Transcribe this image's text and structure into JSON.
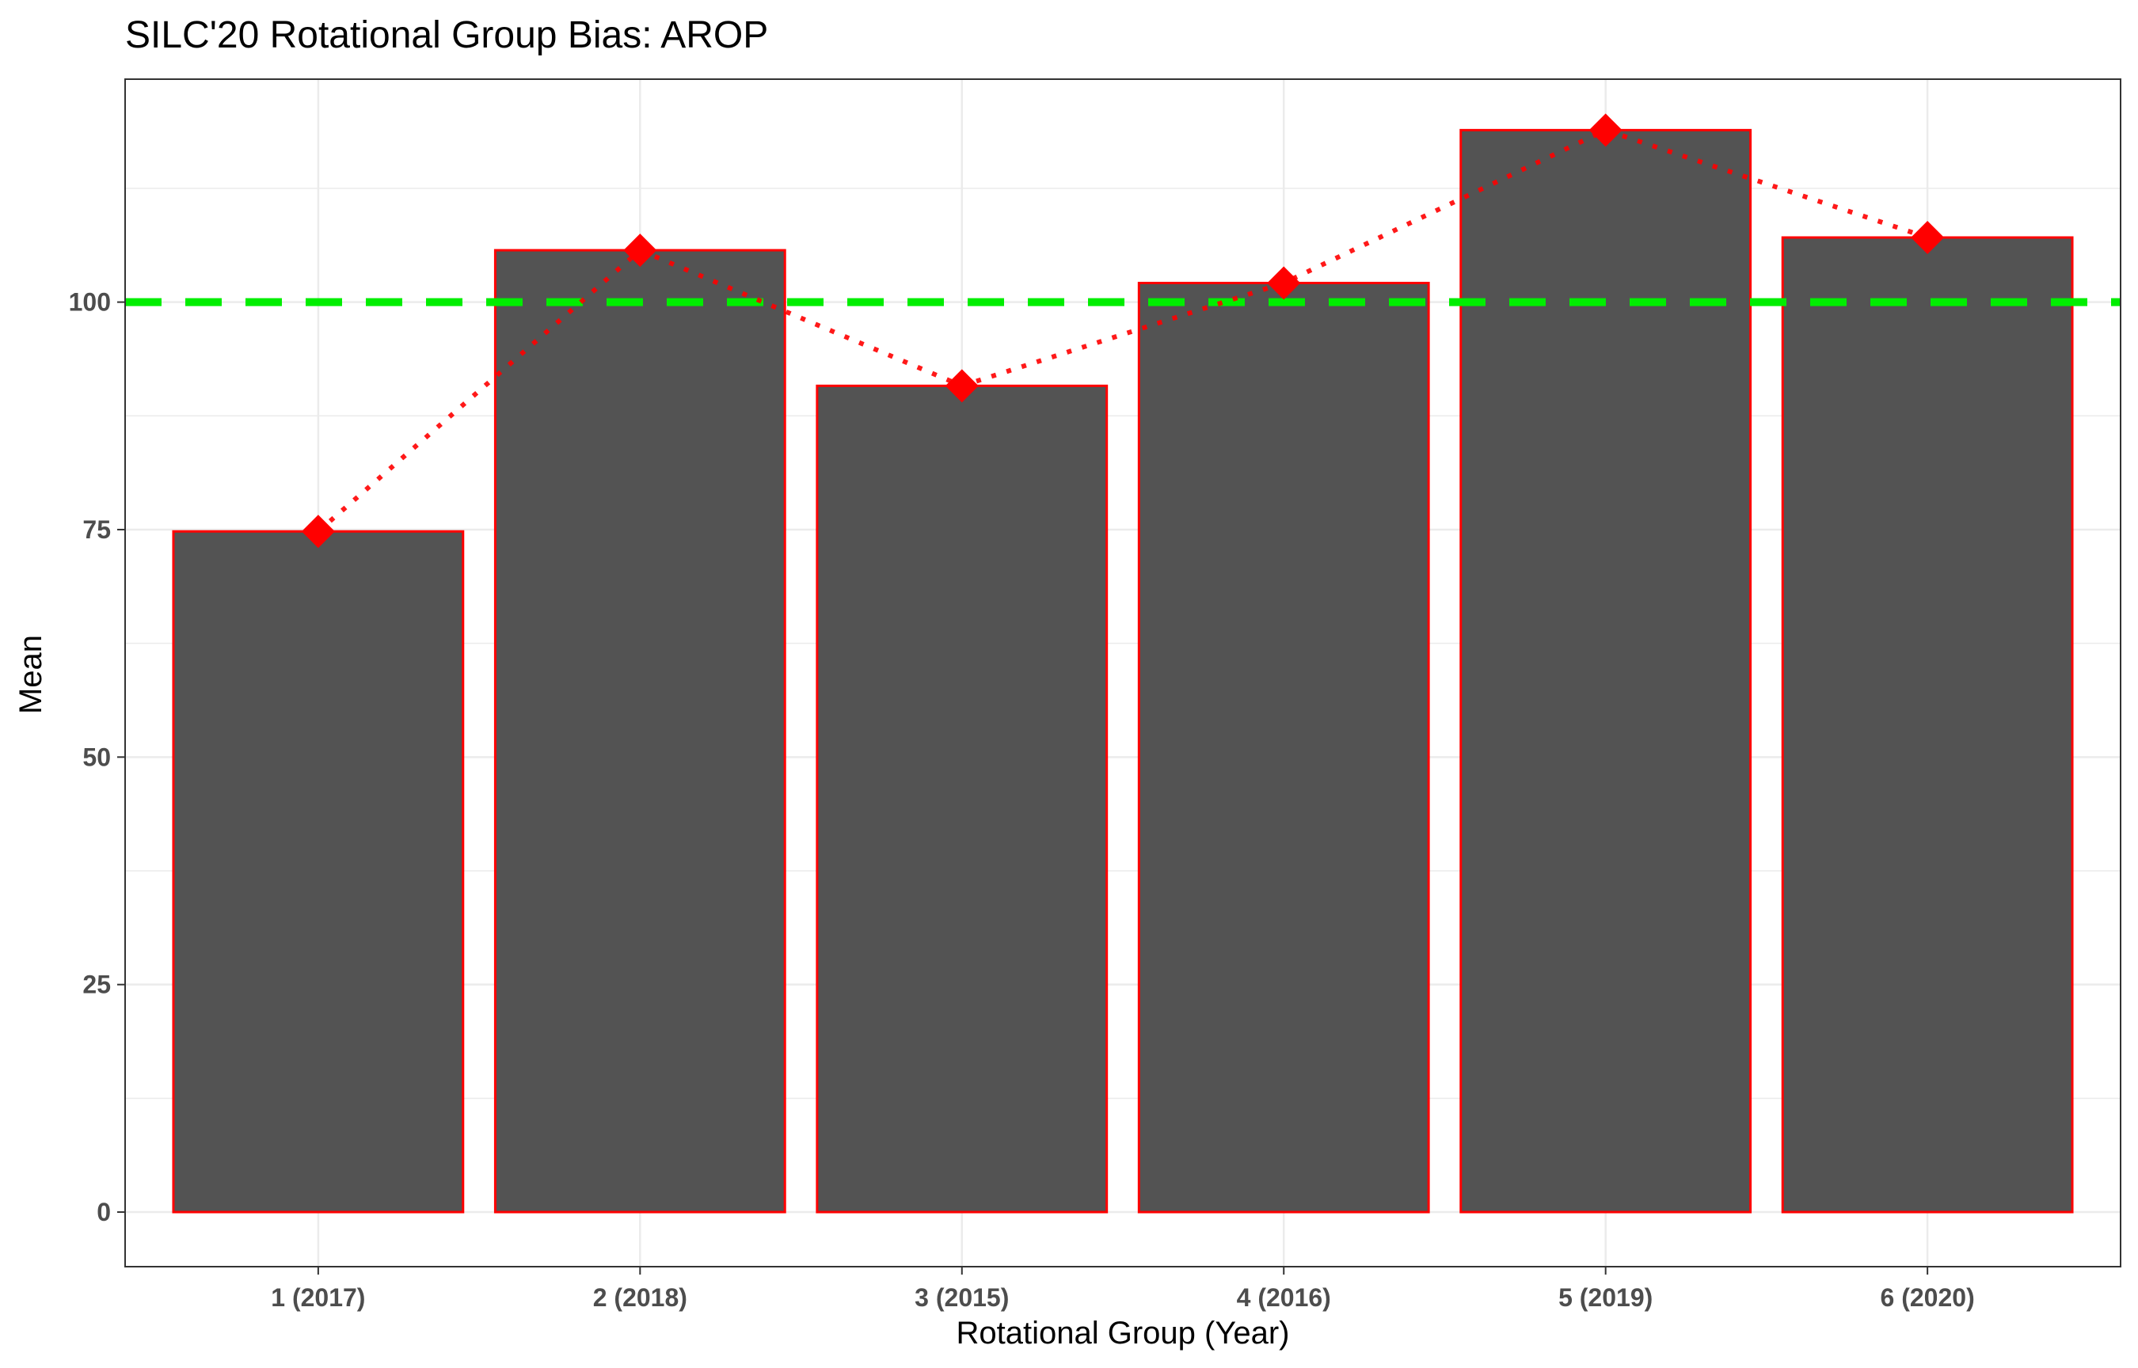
{
  "chart_data": {
    "type": "bar",
    "title": "SILC'20 Rotational Group Bias: AROP",
    "xlabel": "Rotational Group (Year)",
    "ylabel": "Mean",
    "categories": [
      "1 (2017)",
      "2 (2018)",
      "3 (2015)",
      "4 (2016)",
      "5 (2019)",
      "6 (2020)"
    ],
    "values": [
      74.8,
      105.7,
      90.8,
      102.1,
      118.9,
      107.1
    ],
    "line_overlay": {
      "values": [
        74.8,
        105.7,
        90.8,
        102.1,
        118.9,
        107.1
      ],
      "style": "dotted",
      "marker": "diamond"
    },
    "reference_line": {
      "value": 100,
      "style": "dashed"
    },
    "ylim": [
      -6,
      124.5
    ],
    "yticks": [
      0,
      25,
      50,
      75,
      100
    ],
    "ytick_labels": [
      "0",
      "25",
      "50",
      "75",
      "100"
    ],
    "grid": true,
    "legend": "none",
    "colors": {
      "bar_fill": "#4d4d4d",
      "bar_outline": "#ff0000",
      "line": "#ff0000",
      "marker": "#ff0000",
      "reference": "#00ee00",
      "grid": "#ebebeb",
      "panel_border": "#333333",
      "tick_text": "#4d4d4d"
    }
  }
}
